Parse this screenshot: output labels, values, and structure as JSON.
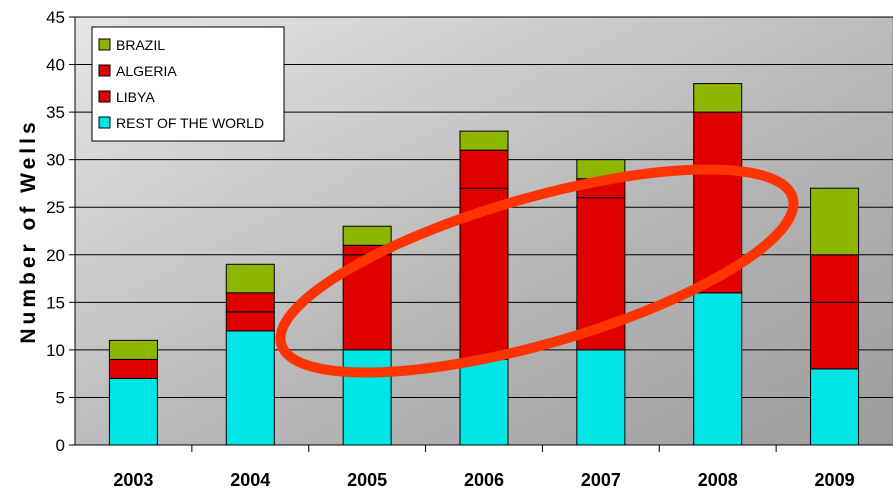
{
  "chart_data": {
    "type": "bar",
    "stacked": true,
    "categories": [
      "2003",
      "2004",
      "2005",
      "2006",
      "2007",
      "2008",
      "2009"
    ],
    "ylabel": "Number of Wells",
    "ylim": [
      0,
      45
    ],
    "yticks": [
      0,
      5,
      10,
      15,
      20,
      25,
      30,
      35,
      40,
      45
    ],
    "grid": true,
    "legend_position": "top-left",
    "series": [
      {
        "name": "REST OF THE WORLD",
        "color": "#00E5E5",
        "values": [
          7,
          12,
          10,
          9,
          10,
          16,
          8
        ]
      },
      {
        "name": "LIBYA",
        "color": "#E00000",
        "values": [
          0,
          2,
          10,
          18,
          16,
          0,
          7
        ]
      },
      {
        "name": "ALGERIA",
        "color": "#E00000",
        "values": [
          2,
          2,
          1,
          4,
          2,
          19,
          5
        ]
      },
      {
        "name": "BRAZIL",
        "color": "#8DB600",
        "values": [
          2,
          3,
          2,
          2,
          2,
          3,
          7
        ]
      }
    ],
    "legend_order": [
      "BRAZIL",
      "ALGERIA",
      "LIBYA",
      "REST OF THE WORLD"
    ],
    "annotation": {
      "shape": "ellipse",
      "color": "#FF3300",
      "around": [
        "2005",
        "2006",
        "2007",
        "2008"
      ]
    }
  }
}
